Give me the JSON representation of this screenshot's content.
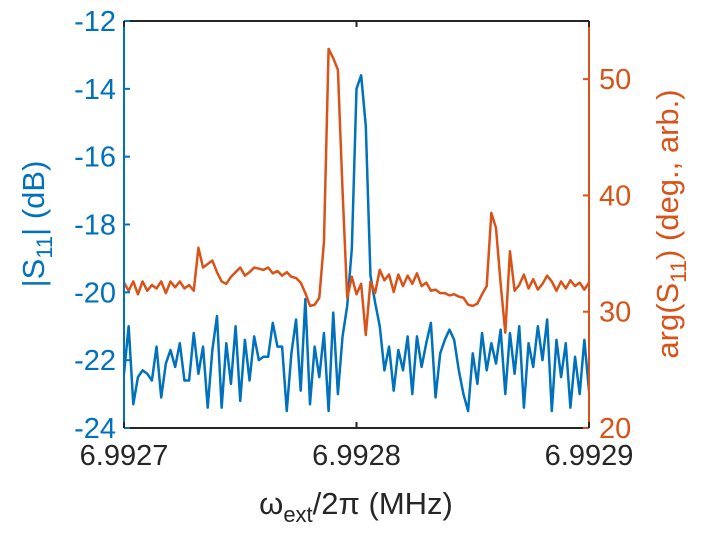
{
  "chart_data": {
    "type": "line",
    "xlabel": {
      "main": "ω",
      "sub": "ext",
      "rest": "/2π (MHz)"
    },
    "ylabel_left": {
      "pre": "|S",
      "sub": "11",
      "post": "| (dB)"
    },
    "ylabel_right": {
      "pre": "arg(S",
      "sub": "11",
      "post": ") (deg., arb.)"
    },
    "xlim": [
      6.9927,
      6.9929
    ],
    "ylim_left": [
      -24,
      -12
    ],
    "ylim_right": [
      20,
      55
    ],
    "x_ticks": [
      "6.9927",
      "6.9928",
      "6.9929"
    ],
    "x_tick_values": [
      6.9927,
      6.9928,
      6.9929
    ],
    "y_left_ticks": [
      "-24",
      "-22",
      "-20",
      "-18",
      "-16",
      "-14",
      "-12"
    ],
    "y_left_tick_values": [
      -24,
      -22,
      -20,
      -18,
      -16,
      -14,
      -12
    ],
    "y_right_ticks": [
      "20",
      "30",
      "40",
      "50"
    ],
    "y_right_tick_values": [
      20,
      30,
      40,
      50
    ],
    "grid": false,
    "colors": {
      "left": "#0072BD",
      "right": "#D95319",
      "axis": "#262626"
    },
    "series": [
      {
        "axis": "left",
        "x": [
          6.9927,
          6.992702,
          6.992704,
          6.992706,
          6.992708,
          6.99271,
          6.992712,
          6.992714,
          6.992716,
          6.992718,
          6.99272,
          6.992722,
          6.992724,
          6.992726,
          6.992728,
          6.99273,
          6.992732,
          6.992734,
          6.992736,
          6.992738,
          6.99274,
          6.992742,
          6.992744,
          6.992746,
          6.992748,
          6.99275,
          6.992752,
          6.992754,
          6.992756,
          6.992758,
          6.99276,
          6.992762,
          6.992764,
          6.992766,
          6.992768,
          6.99277,
          6.992772,
          6.992774,
          6.992776,
          6.992778,
          6.99278,
          6.992782,
          6.992784,
          6.992786,
          6.992788,
          6.99279,
          6.992792,
          6.992794,
          6.992796,
          6.992798,
          6.9928,
          6.992802,
          6.992804,
          6.992806,
          6.992808,
          6.99281,
          6.992812,
          6.992814,
          6.992816,
          6.992818,
          6.99282,
          6.992822,
          6.992824,
          6.992826,
          6.992828,
          6.99283,
          6.992832,
          6.992834,
          6.992836,
          6.992838,
          6.99284,
          6.992842,
          6.992844,
          6.992846,
          6.992848,
          6.99285,
          6.992852,
          6.992854,
          6.992856,
          6.992858,
          6.99286,
          6.992862,
          6.992864,
          6.992866,
          6.992868,
          6.99287,
          6.992872,
          6.992874,
          6.992876,
          6.992878,
          6.99288,
          6.992882,
          6.992884,
          6.992886,
          6.992888,
          6.99289,
          6.992892,
          6.992894,
          6.992896,
          6.992898,
          6.9929
        ],
        "values": [
          -22.4,
          -21.0,
          -23.3,
          -22.5,
          -22.3,
          -22.4,
          -22.6,
          -21.6,
          -23.1,
          -22.1,
          -21.7,
          -22.2,
          -21.5,
          -22.6,
          -22.6,
          -21.2,
          -22.4,
          -21.6,
          -23.4,
          -21.7,
          -20.7,
          -23.4,
          -21.5,
          -22.7,
          -21.0,
          -23.2,
          -21.4,
          -22.6,
          -21.3,
          -22.0,
          -21.9,
          -21.9,
          -20.9,
          -21.6,
          -21.6,
          -23.5,
          -21.8,
          -20.8,
          -22.9,
          -20.2,
          -23.3,
          -21.6,
          -22.5,
          -21.2,
          -23.5,
          -20.6,
          -23.0,
          -21.3,
          -20.4,
          -18.7,
          -14.0,
          -13.6,
          -15.1,
          -19.5,
          -20.3,
          -21.0,
          -22.3,
          -21.6,
          -22.9,
          -21.7,
          -22.3,
          -21.3,
          -23.0,
          -21.3,
          -22.2,
          -21.5,
          -20.9,
          -23.1,
          -21.8,
          -21.4,
          -21.1,
          -21.4,
          -22.3,
          -23.0,
          -23.5,
          -21.8,
          -22.7,
          -21.2,
          -22.3,
          -21.5,
          -22.1,
          -21.1,
          -23.0,
          -21.2,
          -22.4,
          -21.0,
          -23.4,
          -21.5,
          -22.2,
          -21.0,
          -22.0,
          -20.8,
          -23.5,
          -21.4,
          -22.5,
          -21.5,
          -23.4,
          -21.9,
          -23.0,
          -21.4,
          -22.9
        ]
      },
      {
        "axis": "right",
        "x": [
          6.9927,
          6.992702,
          6.992704,
          6.992706,
          6.992708,
          6.99271,
          6.992712,
          6.992714,
          6.992716,
          6.992718,
          6.99272,
          6.992722,
          6.992724,
          6.992726,
          6.992728,
          6.99273,
          6.992732,
          6.992734,
          6.992736,
          6.992738,
          6.99274,
          6.992742,
          6.992744,
          6.992746,
          6.992748,
          6.99275,
          6.992752,
          6.992754,
          6.992756,
          6.992758,
          6.99276,
          6.992762,
          6.992764,
          6.992766,
          6.992768,
          6.99277,
          6.992772,
          6.992774,
          6.992776,
          6.992778,
          6.99278,
          6.992782,
          6.992784,
          6.992786,
          6.992788,
          6.99279,
          6.992792,
          6.992794,
          6.992796,
          6.992798,
          6.9928,
          6.992802,
          6.992804,
          6.992806,
          6.992808,
          6.99281,
          6.992812,
          6.992814,
          6.992816,
          6.992818,
          6.99282,
          6.992822,
          6.992824,
          6.992826,
          6.992828,
          6.99283,
          6.992832,
          6.992834,
          6.992836,
          6.992838,
          6.99284,
          6.992842,
          6.992844,
          6.992846,
          6.992848,
          6.99285,
          6.992852,
          6.992854,
          6.992856,
          6.992858,
          6.99286,
          6.992862,
          6.992864,
          6.992866,
          6.992868,
          6.99287,
          6.992872,
          6.992874,
          6.992876,
          6.992878,
          6.99288,
          6.992882,
          6.992884,
          6.992886,
          6.992888,
          6.99289,
          6.992892,
          6.992894,
          6.992896,
          6.992898,
          6.9929
        ],
        "values": [
          32.5,
          31.8,
          32.6,
          31.5,
          32.6,
          31.8,
          32.3,
          32.0,
          32.6,
          31.6,
          32.6,
          32.1,
          32.6,
          32.0,
          32.3,
          31.8,
          35.5,
          33.8,
          34.1,
          34.4,
          33.4,
          32.6,
          32.4,
          33.0,
          33.4,
          33.8,
          33.1,
          33.4,
          33.8,
          33.7,
          33.6,
          33.8,
          33.3,
          33.5,
          33.1,
          33.4,
          33.0,
          32.9,
          32.5,
          31.6,
          30.5,
          30.6,
          31.2,
          36.0,
          52.6,
          51.8,
          50.8,
          40.4,
          31.2,
          33.0,
          31.5,
          32.4,
          28.0,
          32.6,
          31.6,
          33.6,
          32.7,
          33.2,
          31.7,
          33.2,
          32.2,
          33.1,
          32.4,
          33.3,
          32.2,
          32.5,
          31.8,
          31.9,
          31.6,
          31.6,
          31.4,
          31.5,
          31.3,
          31.2,
          30.6,
          30.5,
          30.7,
          31.5,
          32.2,
          38.5,
          37.2,
          32.4,
          28.2,
          35.2,
          31.8,
          32.3,
          33.2,
          32.0,
          32.8,
          31.9,
          32.4,
          33.1,
          32.6,
          31.8,
          32.6,
          32.0,
          32.7,
          32.2,
          32.5,
          31.9,
          32.5
        ]
      }
    ]
  }
}
